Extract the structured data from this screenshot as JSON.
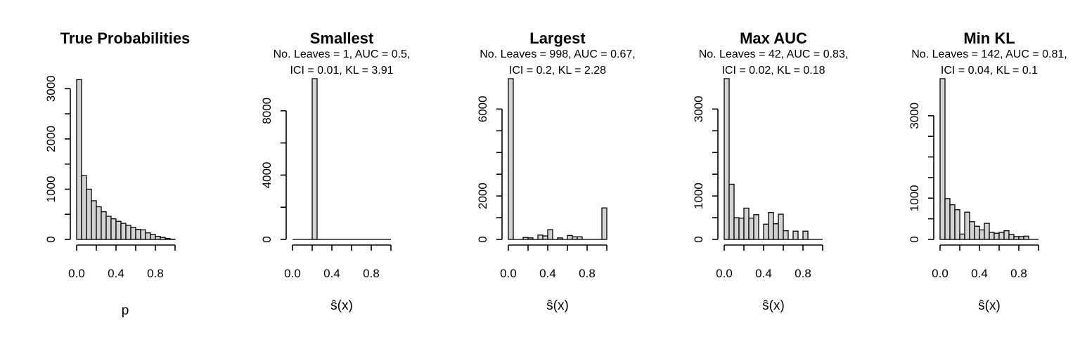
{
  "chart_data": [
    {
      "type": "bar",
      "title": "True Probabilities",
      "subtitle_lines": [],
      "xlabel": "p",
      "x_ticks": [
        "0.0",
        "0.4",
        "0.8"
      ],
      "y_ticks": [
        "0",
        "1000",
        "2000",
        "3000"
      ],
      "x_tick_values": [
        0,
        0.4,
        0.8
      ],
      "y_tick_values": [
        0,
        1000,
        2000,
        3000
      ],
      "xlim": [
        0,
        1
      ],
      "ylim": [
        0,
        3200
      ],
      "bin_width": 0.05,
      "values": [
        3180,
        1270,
        1000,
        770,
        650,
        550,
        460,
        410,
        360,
        320,
        280,
        240,
        200,
        190,
        130,
        100,
        60,
        40,
        20,
        5
      ]
    },
    {
      "type": "bar",
      "title": "Smallest",
      "subtitle_lines": [
        "No. Leaves = 1, AUC = 0.5,",
        "ICI = 0.01, KL = 3.91"
      ],
      "xlabel": "ŝ(x)",
      "x_ticks": [
        "0.0",
        "0.4",
        "0.8"
      ],
      "y_ticks": [
        "0",
        "4000",
        "8000"
      ],
      "x_tick_values": [
        0,
        0.4,
        0.8
      ],
      "y_tick_values": [
        0,
        4000,
        8000
      ],
      "xlim": [
        0,
        1
      ],
      "ylim": [
        0,
        10000
      ],
      "bin_width": 0.05,
      "values": [
        0,
        0,
        0,
        0,
        10000,
        0,
        0,
        0,
        0,
        0,
        0,
        0,
        0,
        0,
        0,
        0,
        0,
        0,
        0,
        0
      ]
    },
    {
      "type": "bar",
      "title": "Largest",
      "subtitle_lines": [
        "No. Leaves = 998, AUC = 0.67,",
        "ICI = 0.2, KL = 2.28"
      ],
      "xlabel": "ŝ(x)",
      "x_ticks": [
        "0.0",
        "0.4",
        "0.8"
      ],
      "y_ticks": [
        "0",
        "2000",
        "6000"
      ],
      "x_tick_values": [
        0,
        0.4,
        0.8
      ],
      "y_tick_values": [
        0,
        2000,
        6000
      ],
      "xlim": [
        0,
        1
      ],
      "ylim": [
        0,
        7400
      ],
      "bin_width": 0.05,
      "values": [
        7400,
        0,
        0,
        90,
        70,
        0,
        200,
        160,
        450,
        0,
        70,
        0,
        180,
        120,
        120,
        0,
        0,
        0,
        0,
        1450
      ]
    },
    {
      "type": "bar",
      "title": "Max AUC",
      "subtitle_lines": [
        "No. Leaves = 42, AUC = 0.83,",
        "ICI = 0.02, KL = 0.18"
      ],
      "xlabel": "ŝ(x)",
      "x_ticks": [
        "0.0",
        "0.4",
        "0.8"
      ],
      "y_ticks": [
        "0",
        "1000",
        "3000"
      ],
      "x_tick_values": [
        0,
        0.4,
        0.8
      ],
      "y_tick_values": [
        0,
        1000,
        3000
      ],
      "xlim": [
        0,
        1
      ],
      "ylim": [
        0,
        3700
      ],
      "bin_width": 0.05,
      "values": [
        3700,
        1270,
        500,
        490,
        720,
        490,
        570,
        0,
        350,
        620,
        360,
        580,
        200,
        0,
        190,
        0,
        190,
        0,
        0,
        0
      ]
    },
    {
      "type": "bar",
      "title": "Min KL",
      "subtitle_lines": [
        "No. Leaves = 142, AUC = 0.81,",
        "ICI = 0.04, KL = 0.1"
      ],
      "xlabel": "ŝ(x)",
      "x_ticks": [
        "0.0",
        "0.4",
        "0.8"
      ],
      "y_ticks": [
        "0",
        "1000",
        "3000"
      ],
      "x_tick_values": [
        0,
        0.4,
        0.8
      ],
      "y_tick_values": [
        0,
        1000,
        3000
      ],
      "xlim": [
        0,
        1
      ],
      "ylim": [
        0,
        3900
      ],
      "bin_width": 0.05,
      "values": [
        3900,
        990,
        840,
        720,
        130,
        660,
        430,
        320,
        230,
        390,
        170,
        150,
        170,
        210,
        120,
        70,
        70,
        80,
        0,
        0
      ]
    }
  ]
}
